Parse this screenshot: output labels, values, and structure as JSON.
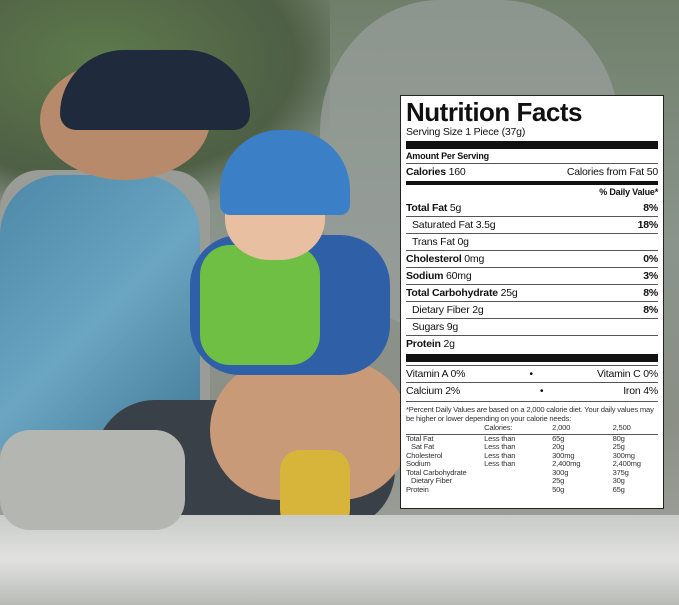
{
  "label": {
    "title": "Nutrition Facts",
    "serving_size": "Serving Size 1 Piece (37g)",
    "amount_per_serving": "Amount Per Serving",
    "calories_label": "Calories",
    "calories_value": "160",
    "calories_from_fat": "Calories from Fat 50",
    "daily_value_header": "% Daily Value*",
    "nutrients": [
      {
        "name": "Total Fat",
        "amount": "5g",
        "dv": "8%",
        "bold": true,
        "indent": false
      },
      {
        "name": "Saturated Fat",
        "amount": "3.5g",
        "dv": "18%",
        "bold": false,
        "indent": true
      },
      {
        "name": "Trans Fat",
        "amount": "0g",
        "dv": "",
        "bold": false,
        "indent": true
      },
      {
        "name": "Cholesterol",
        "amount": "0mg",
        "dv": "0%",
        "bold": true,
        "indent": false
      },
      {
        "name": "Sodium",
        "amount": "60mg",
        "dv": "3%",
        "bold": true,
        "indent": false
      },
      {
        "name": "Total Carbohydrate",
        "amount": "25g",
        "dv": "8%",
        "bold": true,
        "indent": false
      },
      {
        "name": "Dietary Fiber",
        "amount": "2g",
        "dv": "8%",
        "bold": false,
        "indent": true
      },
      {
        "name": "Sugars",
        "amount": "9g",
        "dv": "",
        "bold": false,
        "indent": true
      },
      {
        "name": "Protein",
        "amount": "2g",
        "dv": "",
        "bold": true,
        "indent": false
      }
    ],
    "vitamins": [
      {
        "left": "Vitamin A 0%",
        "sep": "•",
        "right": "Vitamin C 0%"
      },
      {
        "left": "Calcium 2%",
        "sep": "•",
        "right": "Iron 4%"
      }
    ],
    "footnote": "*Percent Daily Values are based on a 2,000 calorie diet. Your daily values may be higher or lower depending on your calorie needs:",
    "table_header": [
      "",
      "Calories:",
      "2,000",
      "2,500"
    ],
    "table_rows": [
      [
        "Total Fat",
        "Less than",
        "65g",
        "80g"
      ],
      [
        "Sat Fat",
        "Less than",
        "20g",
        "25g"
      ],
      [
        "Cholesterol",
        "Less than",
        "300mg",
        "300mg"
      ],
      [
        "Sodium",
        "Less than",
        "2,400mg",
        "2,400mg"
      ],
      [
        "Total Carbohydrate",
        "",
        "300g",
        "375g"
      ],
      [
        "Dietary Fiber",
        "",
        "25g",
        "30g"
      ],
      [
        "Protein",
        "",
        "50g",
        "65g"
      ]
    ]
  }
}
